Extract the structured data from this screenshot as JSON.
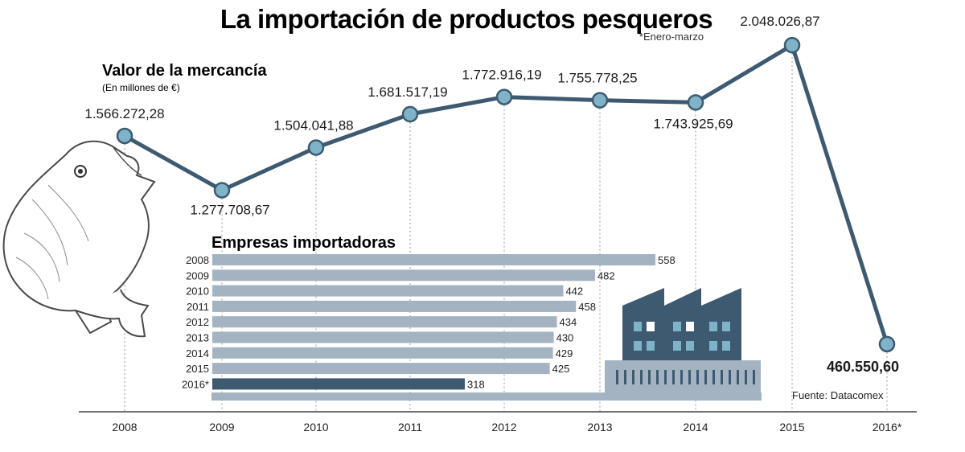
{
  "header": {
    "title": "La importación de productos pesqueros",
    "note": "*Enero-marzo",
    "source": "Fuente: Datacomex"
  },
  "colors": {
    "line": "#3e5a70",
    "marker_fill": "#7fb3c8",
    "bar": "#a3b3c2",
    "bar_highlight": "#3e5a70",
    "factory": "#3e5a70",
    "factory_windows": "#7fb3c8",
    "factory_base": "#a3b3c2"
  },
  "chart_data": [
    {
      "type": "line",
      "title": "Valor de la mercancía",
      "subtitle": "(En millones de €)",
      "categories": [
        "2008",
        "2009",
        "2010",
        "2011",
        "2012",
        "2013",
        "2014",
        "2015",
        "2016*"
      ],
      "series": [
        {
          "values": [
            1566272.28,
            1277708.67,
            1504041.88,
            1681517.19,
            1772916.19,
            1755778.25,
            1743925.69,
            2048026.87,
            460550.6
          ],
          "labels": [
            "1.566.272,28",
            "1.277.708,67",
            "1.504.041,88",
            "1.681.517,19",
            "1.772.916,19",
            "1.755.778,25",
            "1.743.925,69",
            "2.048.026,87",
            "460.550,60"
          ]
        }
      ],
      "grid": "vertical-dotted"
    },
    {
      "type": "bar",
      "orientation": "horizontal",
      "title": "Empresas importadoras",
      "categories": [
        "2008",
        "2009",
        "2010",
        "2011",
        "2012",
        "2013",
        "2014",
        "2015",
        "2016*"
      ],
      "values": [
        558,
        482,
        442,
        458,
        434,
        430,
        429,
        425,
        318
      ]
    }
  ]
}
